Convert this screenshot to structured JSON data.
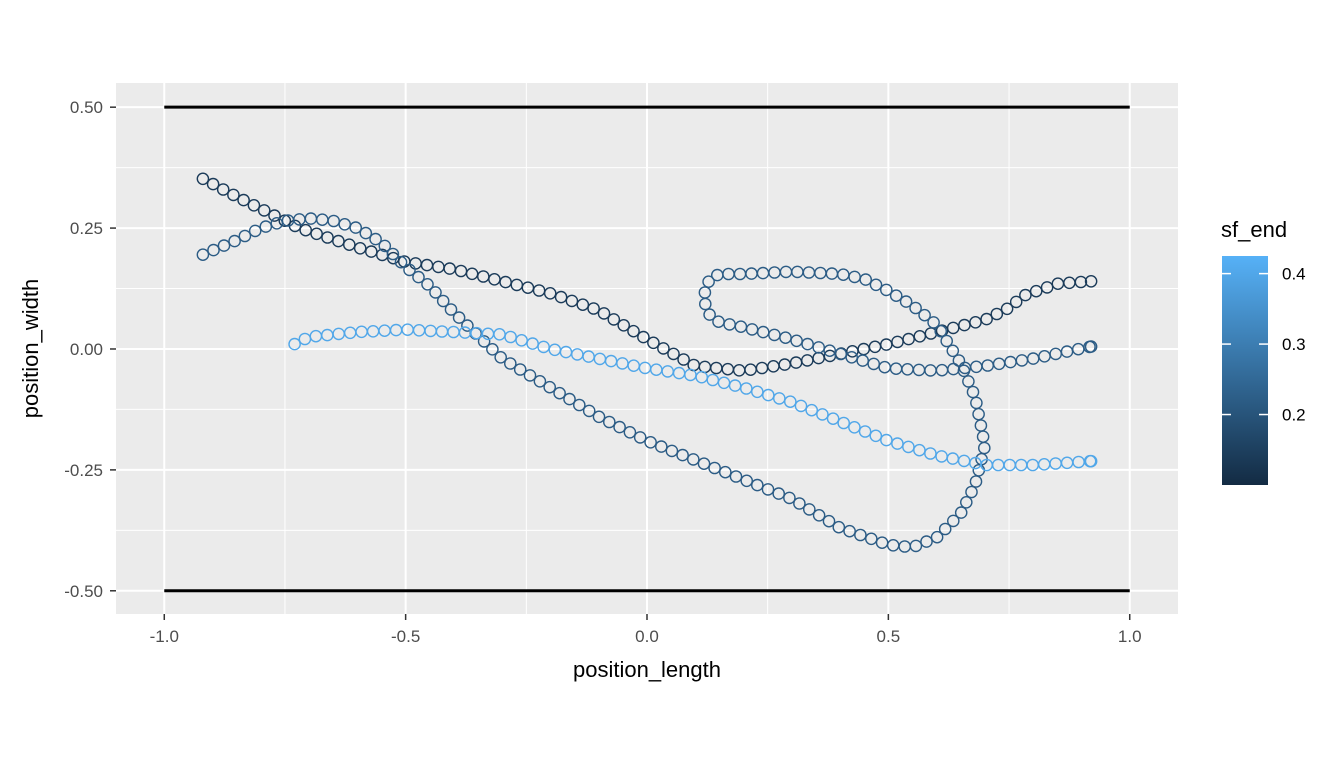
{
  "chart_data": {
    "type": "scatter",
    "xlabel": "position_length",
    "ylabel": "position_width",
    "xlim": [
      -1.1,
      1.1
    ],
    "ylim": [
      -0.548,
      0.55
    ],
    "x_ticks": [
      -1.0,
      -0.5,
      0.0,
      0.5,
      1.0
    ],
    "x_tick_labels": [
      "-1.0",
      "-0.5",
      "0.0",
      "0.5",
      "1.0"
    ],
    "y_ticks": [
      -0.5,
      -0.25,
      0.0,
      0.25,
      0.5
    ],
    "y_tick_labels": [
      "-0.50",
      "-0.25",
      "0.00",
      "0.25",
      "0.50"
    ],
    "grid": true,
    "marker": "open-circle",
    "hlines": [
      0.5,
      -0.5
    ],
    "hline_range": [
      -1.0,
      1.0
    ],
    "legend": {
      "title": "sf_end",
      "position": "right",
      "range": [
        0.1,
        0.425
      ],
      "breaks": [
        0.2,
        0.3,
        0.4
      ],
      "break_labels": [
        "0.2",
        "0.3",
        "0.4"
      ],
      "low_color": "#132b43",
      "high_color": "#56b1f7"
    },
    "series": [
      {
        "color_value": 0.14,
        "anchors": [
          [
            -0.92,
            0.352
          ],
          [
            -0.85,
            0.315
          ],
          [
            -0.77,
            0.275
          ],
          [
            -0.72,
            0.25
          ],
          [
            -0.6,
            0.21
          ],
          [
            -0.5,
            0.18
          ],
          [
            -0.4,
            0.165
          ],
          [
            -0.3,
            0.14
          ],
          [
            -0.2,
            0.115
          ],
          [
            -0.1,
            0.08
          ],
          [
            0.0,
            0.02
          ],
          [
            0.1,
            -0.035
          ],
          [
            0.2,
            -0.045
          ],
          [
            0.3,
            -0.03
          ],
          [
            0.4,
            -0.01
          ],
          [
            0.5,
            0.01
          ],
          [
            0.6,
            0.035
          ],
          [
            0.7,
            0.06
          ],
          [
            0.75,
            0.085
          ],
          [
            0.78,
            0.11
          ],
          [
            0.85,
            0.135
          ],
          [
            0.92,
            0.14
          ]
        ]
      },
      {
        "color_value": 0.22,
        "anchors": [
          [
            -0.92,
            0.195
          ],
          [
            -0.85,
            0.225
          ],
          [
            -0.8,
            0.25
          ],
          [
            -0.75,
            0.265
          ],
          [
            -0.7,
            0.27
          ],
          [
            -0.65,
            0.265
          ],
          [
            -0.6,
            0.25
          ],
          [
            -0.55,
            0.22
          ],
          [
            -0.5,
            0.17
          ],
          [
            -0.45,
            0.13
          ],
          [
            -0.4,
            0.075
          ],
          [
            -0.3,
            -0.02
          ],
          [
            -0.2,
            -0.08
          ],
          [
            -0.1,
            -0.14
          ],
          [
            0.0,
            -0.19
          ],
          [
            0.1,
            -0.23
          ],
          [
            0.2,
            -0.27
          ],
          [
            0.3,
            -0.31
          ],
          [
            0.4,
            -0.37
          ],
          [
            0.5,
            -0.405
          ],
          [
            0.55,
            -0.41
          ],
          [
            0.6,
            -0.39
          ],
          [
            0.65,
            -0.34
          ],
          [
            0.68,
            -0.28
          ],
          [
            0.7,
            -0.2
          ],
          [
            0.68,
            -0.1
          ],
          [
            0.65,
            -0.03
          ],
          [
            0.6,
            0.05
          ],
          [
            0.55,
            0.09
          ],
          [
            0.5,
            0.12
          ],
          [
            0.45,
            0.145
          ],
          [
            0.4,
            0.155
          ],
          [
            0.3,
            0.16
          ],
          [
            0.2,
            0.155
          ],
          [
            0.15,
            0.155
          ],
          [
            0.13,
            0.145
          ],
          [
            0.12,
            0.12
          ],
          [
            0.12,
            0.095
          ],
          [
            0.13,
            0.07
          ],
          [
            0.15,
            0.055
          ],
          [
            0.2,
            0.045
          ],
          [
            0.3,
            0.02
          ],
          [
            0.4,
            -0.01
          ],
          [
            0.45,
            -0.025
          ],
          [
            0.5,
            -0.04
          ],
          [
            0.6,
            -0.045
          ],
          [
            0.7,
            -0.035
          ],
          [
            0.8,
            -0.02
          ],
          [
            0.92,
            0.005
          ]
        ]
      },
      {
        "color_value": 0.4,
        "anchors": [
          [
            -0.73,
            0.01
          ],
          [
            -0.7,
            0.025
          ],
          [
            -0.6,
            0.035
          ],
          [
            -0.5,
            0.04
          ],
          [
            -0.4,
            0.035
          ],
          [
            -0.3,
            0.03
          ],
          [
            -0.2,
            0.0
          ],
          [
            -0.1,
            -0.02
          ],
          [
            0.0,
            -0.04
          ],
          [
            0.1,
            -0.055
          ],
          [
            0.2,
            -0.08
          ],
          [
            0.3,
            -0.11
          ],
          [
            0.4,
            -0.15
          ],
          [
            0.5,
            -0.19
          ],
          [
            0.6,
            -0.22
          ],
          [
            0.7,
            -0.24
          ],
          [
            0.8,
            -0.24
          ],
          [
            0.92,
            -0.232
          ]
        ]
      }
    ]
  }
}
